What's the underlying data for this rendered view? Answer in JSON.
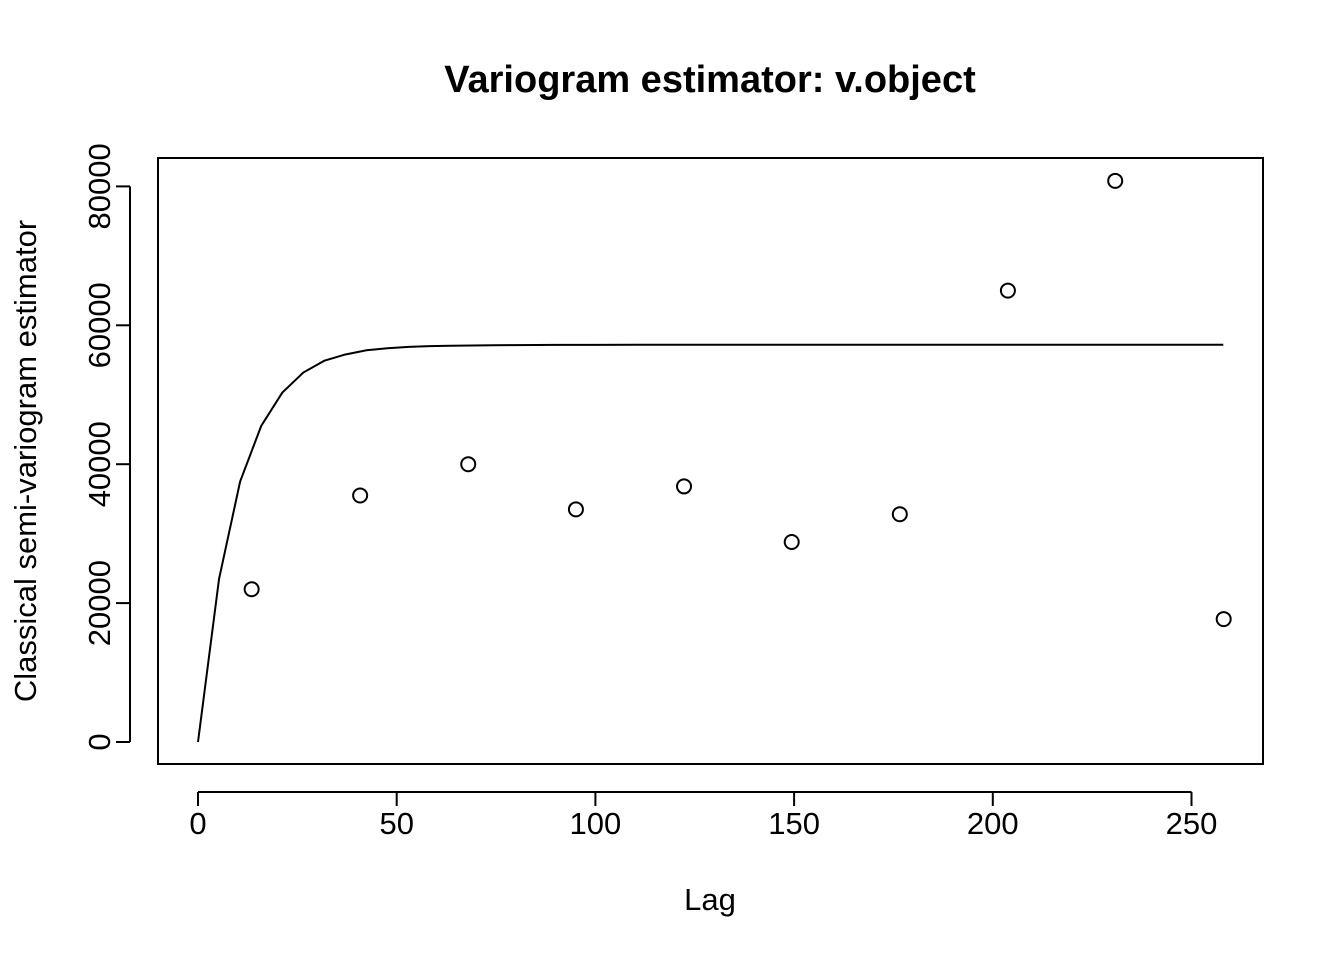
{
  "chart_data": {
    "type": "scatter",
    "title": "Variogram estimator: v.object",
    "xlabel": "Lag",
    "ylabel": "Classical semi-variogram estimator",
    "xlim": [
      -10,
      270
    ],
    "ylim": [
      -3000,
      84000
    ],
    "x_ticks": [
      0,
      50,
      100,
      150,
      200,
      250
    ],
    "y_ticks": [
      0,
      20000,
      40000,
      60000,
      80000
    ],
    "grid": false,
    "legend": "none",
    "series": [
      {
        "type": "scatter",
        "marker": "open-circle",
        "x": [
          13.5,
          40.8,
          68.0,
          95.1,
          122.3,
          149.4,
          176.6,
          203.8,
          230.8,
          258.1
        ],
        "y": [
          22000,
          35500,
          40000,
          33500,
          36800,
          28800,
          32800,
          65000,
          80800,
          17700
        ]
      },
      {
        "type": "line",
        "x": [
          0,
          5.3,
          10.6,
          15.9,
          21.2,
          26.5,
          31.8,
          37.1,
          42.4,
          47.7,
          53.0,
          58.3,
          63.6,
          68.9,
          74.2,
          79.5,
          90,
          100,
          120,
          150,
          200,
          258
        ],
        "y": [
          0,
          23500,
          37500,
          45500,
          50300,
          53200,
          54900,
          55800,
          56400,
          56700,
          56900,
          57000,
          57050,
          57100,
          57120,
          57150,
          57180,
          57190,
          57200,
          57200,
          57200,
          57200
        ]
      }
    ]
  }
}
